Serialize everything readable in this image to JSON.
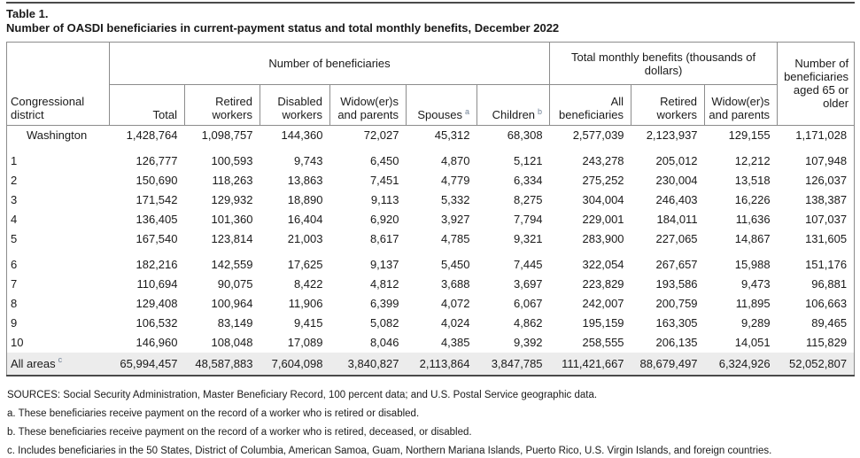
{
  "page": {
    "table_label": "Table 1.",
    "title": "Number of OASDI beneficiaries in current-payment status and total monthly benefits, December 2022"
  },
  "table": {
    "headers": {
      "district": "Congressional district",
      "beneficiaries_group": "Number of beneficiaries",
      "benefits_group": "Total monthly benefits (thousands of dollars)",
      "aged_65": "Number of beneficiaries aged 65 or older"
    },
    "sub_headers": [
      "Total",
      "Retired workers",
      "Disabled workers",
      "Widow(er)s and parents",
      "Spouses",
      "Children",
      "All beneficiaries",
      "Retired workers",
      "Widow(er)s and parents"
    ],
    "footnote_markers": {
      "spouses": "a",
      "children": "b",
      "all_areas": "c"
    },
    "rows": [
      {
        "label": "Washington",
        "indent": true,
        "gap_after": true,
        "values": [
          "1,428,764",
          "1,098,757",
          "144,360",
          "72,027",
          "45,312",
          "68,308",
          "2,577,039",
          "2,123,937",
          "129,155",
          "1,171,028"
        ]
      },
      {
        "label": "1",
        "values": [
          "126,777",
          "100,593",
          "9,743",
          "6,450",
          "4,870",
          "5,121",
          "243,278",
          "205,012",
          "12,212",
          "107,948"
        ]
      },
      {
        "label": "2",
        "values": [
          "150,690",
          "118,263",
          "13,863",
          "7,451",
          "4,779",
          "6,334",
          "275,252",
          "230,004",
          "13,518",
          "126,037"
        ]
      },
      {
        "label": "3",
        "values": [
          "171,542",
          "129,932",
          "18,890",
          "9,113",
          "5,332",
          "8,275",
          "304,004",
          "246,403",
          "16,226",
          "138,387"
        ]
      },
      {
        "label": "4",
        "values": [
          "136,405",
          "101,360",
          "16,404",
          "6,920",
          "3,927",
          "7,794",
          "229,001",
          "184,011",
          "11,636",
          "107,037"
        ]
      },
      {
        "label": "5",
        "gap_after": true,
        "values": [
          "167,540",
          "123,814",
          "21,003",
          "8,617",
          "4,785",
          "9,321",
          "283,900",
          "227,065",
          "14,867",
          "131,605"
        ]
      },
      {
        "label": "6",
        "values": [
          "182,216",
          "142,559",
          "17,625",
          "9,137",
          "5,450",
          "7,445",
          "322,054",
          "267,657",
          "15,988",
          "151,176"
        ]
      },
      {
        "label": "7",
        "values": [
          "110,694",
          "90,075",
          "8,422",
          "4,812",
          "3,688",
          "3,697",
          "223,829",
          "193,586",
          "9,473",
          "96,881"
        ]
      },
      {
        "label": "8",
        "values": [
          "129,408",
          "100,964",
          "11,906",
          "6,399",
          "4,072",
          "6,067",
          "242,007",
          "200,759",
          "11,895",
          "106,663"
        ]
      },
      {
        "label": "9",
        "values": [
          "106,532",
          "83,149",
          "9,415",
          "5,082",
          "4,024",
          "4,862",
          "195,159",
          "163,305",
          "9,289",
          "89,465"
        ]
      },
      {
        "label": "10",
        "values": [
          "146,960",
          "108,048",
          "17,089",
          "8,046",
          "4,385",
          "9,392",
          "258,555",
          "206,135",
          "14,051",
          "115,829"
        ]
      }
    ],
    "total_row": {
      "label": "All areas",
      "values": [
        "65,994,457",
        "48,587,883",
        "7,604,098",
        "3,840,827",
        "2,113,864",
        "3,847,785",
        "111,421,667",
        "88,679,497",
        "6,324,926",
        "52,052,807"
      ]
    }
  },
  "footnotes": {
    "sources": "SOURCES: Social Security Administration, Master Beneficiary Record, 100 percent data; and U.S. Postal Service geographic data.",
    "a": "a. These beneficiaries receive payment on the record of a worker who is retired or disabled.",
    "b": "b. These beneficiaries receive payment on the record of a worker who is retired, deceased, or disabled.",
    "c": "c. Includes beneficiaries in the 50 States, District of Columbia, American Samoa, Guam, Northern Mariana Islands, Puerto Rico, U.S. Virgin Islands, and foreign countries."
  },
  "colors": {
    "border_gray": "#8c8c8c",
    "rule_dark": "#4a4a4a",
    "total_row_bg": "#ececec",
    "footnote_marker_blue": "#708196"
  }
}
